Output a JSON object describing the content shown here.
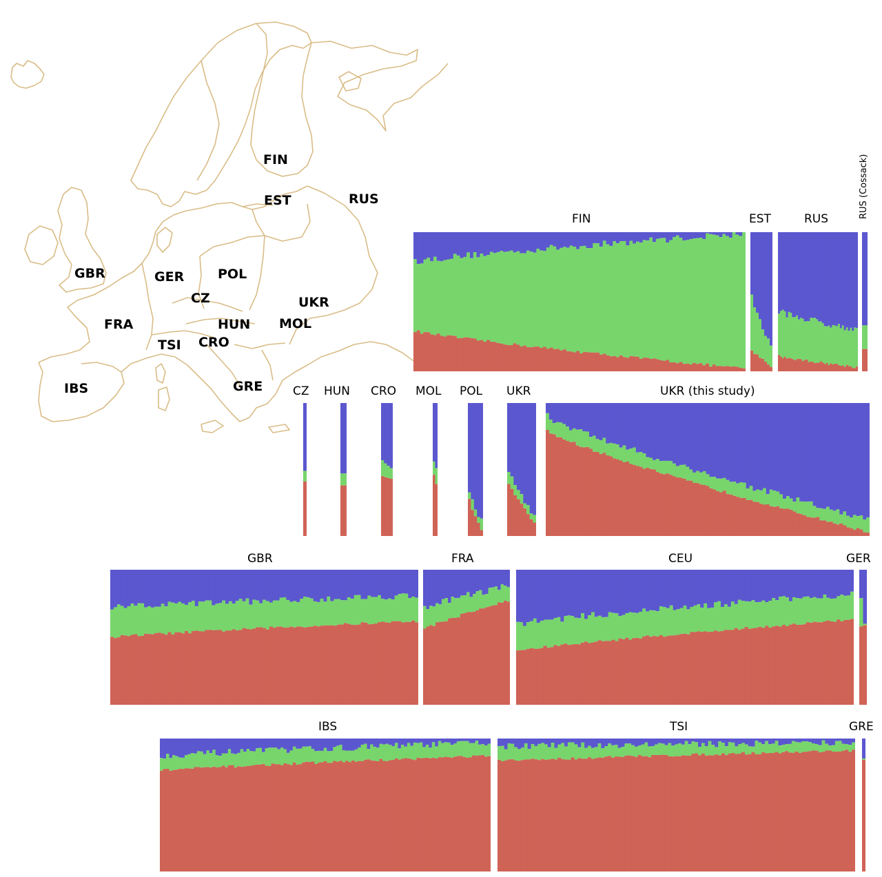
{
  "colors": {
    "blue": "#5b57cf",
    "green": "#78d56c",
    "red": "#cf6356",
    "map_line": "#d9bc86"
  },
  "map": {
    "labels": {
      "FIN": "FIN",
      "EST": "EST",
      "RUS": "RUS",
      "GBR": "GBR",
      "GER": "GER",
      "POL": "POL",
      "CZ": "CZ",
      "UKR": "UKR",
      "FRA": "FRA",
      "HUN": "HUN",
      "MOL": "MOL",
      "TSI": "TSI",
      "CRO": "CRO",
      "IBS": "IBS",
      "GRE": "GRE"
    }
  },
  "chart_data": {
    "type": "stacked-bar (admixture proportions, K=3)",
    "components": [
      "blue",
      "green",
      "red"
    ],
    "note": "Each population panel is a set of individuals (vertical bars). Values below are the approximate red fraction and red+green fraction at the start and end of each sorted panel; intermediate bars follow a smooth trend with jitter.",
    "populations": [
      {
        "id": "FIN",
        "label": "FIN",
        "n": 100,
        "red": [
          0.29,
          0.02
        ],
        "red_green": [
          0.79,
          0.99
        ]
      },
      {
        "id": "EST",
        "label": "EST",
        "n": 8,
        "red": [
          0.15,
          0.04
        ],
        "red_green": [
          0.54,
          0.18
        ]
      },
      {
        "id": "RUS",
        "label": "RUS",
        "n": 40,
        "red": [
          0.11,
          0.03
        ],
        "red_green": [
          0.43,
          0.3
        ]
      },
      {
        "id": "RUS_COSSACK",
        "label": "RUS (Cossack)",
        "n": 1,
        "red": [
          0.16,
          0.16
        ],
        "red_green": [
          0.33,
          0.33
        ]
      },
      {
        "id": "CZ",
        "label": "CZ",
        "n": 1,
        "red": [
          0.41,
          0.41
        ],
        "red_green": [
          0.49,
          0.49
        ]
      },
      {
        "id": "HUN",
        "label": "HUN",
        "n": 2,
        "red": [
          0.38,
          0.38
        ],
        "red_green": [
          0.47,
          0.47
        ]
      },
      {
        "id": "CRO",
        "label": "CRO",
        "n": 4,
        "red": [
          0.45,
          0.43
        ],
        "red_green": [
          0.57,
          0.51
        ]
      },
      {
        "id": "MOL",
        "label": "MOL",
        "n": 2,
        "red": [
          0.46,
          0.39
        ],
        "red_green": [
          0.56,
          0.51
        ]
      },
      {
        "id": "POL",
        "label": "POL",
        "n": 5,
        "red": [
          0.27,
          0.04
        ],
        "red_green": [
          0.35,
          0.11
        ]
      },
      {
        "id": "UKR",
        "label": "UKR",
        "n": 9,
        "red": [
          0.4,
          0.1
        ],
        "red_green": [
          0.49,
          0.15
        ]
      },
      {
        "id": "UKR_STUDY",
        "label": "UKR (this study)",
        "n": 97,
        "red": [
          0.79,
          0.03
        ],
        "red_green": [
          0.9,
          0.12
        ]
      },
      {
        "id": "GBR",
        "label": "GBR",
        "n": 91,
        "red": [
          0.5,
          0.62
        ],
        "red_green": [
          0.72,
          0.81
        ]
      },
      {
        "id": "FRA",
        "label": "FRA",
        "n": 28,
        "red": [
          0.56,
          0.77
        ],
        "red_green": [
          0.72,
          0.88
        ]
      },
      {
        "id": "CEU",
        "label": "CEU",
        "n": 99,
        "red": [
          0.4,
          0.63
        ],
        "red_green": [
          0.6,
          0.82
        ]
      },
      {
        "id": "GER",
        "label": "GER",
        "n": 2,
        "red": [
          0.58,
          0.59
        ],
        "red_green": [
          0.79,
          0.6
        ]
      },
      {
        "id": "IBS",
        "label": "IBS",
        "n": 107,
        "red": [
          0.76,
          0.87
        ],
        "red_green": [
          0.87,
          0.97
        ]
      },
      {
        "id": "TSI",
        "label": "TSI",
        "n": 107,
        "red": [
          0.83,
          0.91
        ],
        "red_green": [
          0.94,
          0.97
        ]
      },
      {
        "id": "GRE",
        "label": "GRE",
        "n": 1,
        "red": [
          0.84,
          0.84
        ],
        "red_green": [
          0.85,
          0.85
        ]
      }
    ]
  }
}
